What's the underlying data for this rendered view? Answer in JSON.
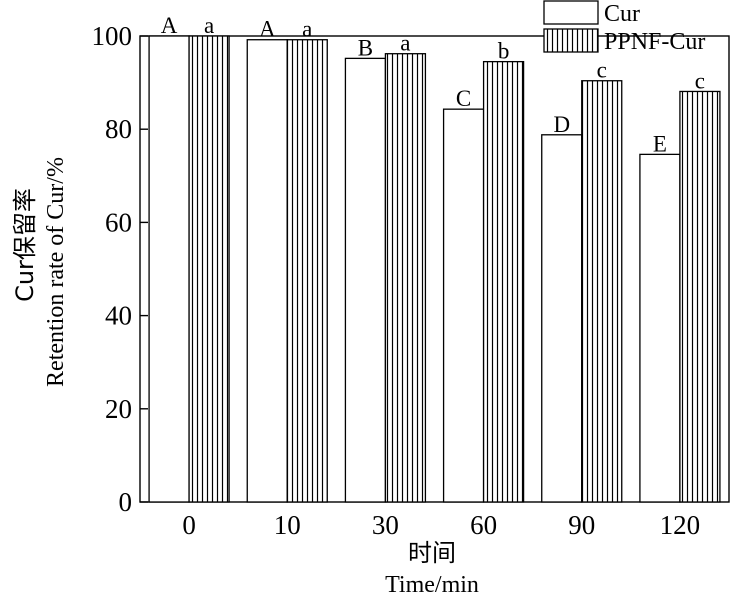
{
  "chart_data": {
    "type": "bar",
    "categories": [
      "0",
      "10",
      "30",
      "60",
      "90",
      "120"
    ],
    "series": [
      {
        "name": "Cur",
        "values": [
          100,
          99.2,
          95.2,
          84.3,
          78.8,
          74.6
        ],
        "letters": [
          "A",
          "A",
          "B",
          "C",
          "D",
          "E"
        ],
        "fill": "plain"
      },
      {
        "name": "PPNF-Cur",
        "values": [
          100,
          99.2,
          96.2,
          94.5,
          90.4,
          88.1
        ],
        "letters": [
          "a",
          "a",
          "a",
          "b",
          "c",
          "c"
        ],
        "fill": "vertical-hatch"
      }
    ],
    "ylim": [
      0,
      100
    ],
    "yticks": [
      "0",
      "20",
      "40",
      "60",
      "80",
      "100"
    ],
    "xlabel_cn": "时间",
    "xlabel_en": "Time/min",
    "ylabel_cn": "Cur保留率",
    "ylabel_en": "Retention rate of Cur/%",
    "legend_position": "top-right",
    "grid": false
  }
}
